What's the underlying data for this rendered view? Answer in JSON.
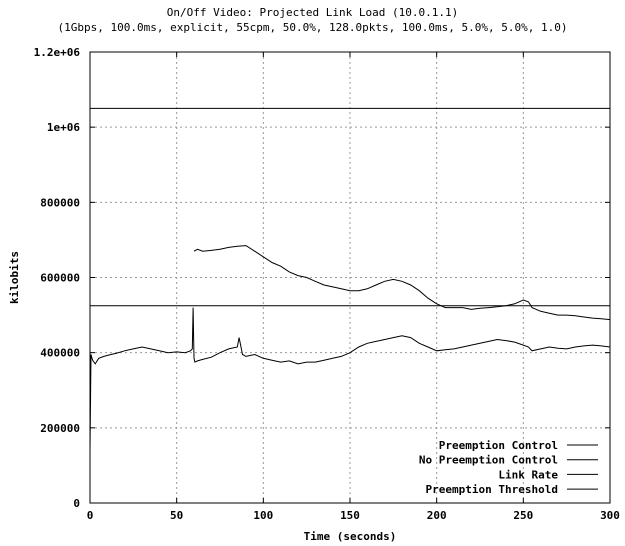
{
  "chart_data": {
    "type": "line",
    "title": "On/Off Video: Projected Link Load (10.0.1.1)",
    "subtitle": "(1Gbps, 100.0ms, explicit, 55cpm, 50.0%, 128.0pkts, 100.0ms, 5.0%, 5.0%, 1.0)",
    "xlabel": "Time (seconds)",
    "ylabel": "kilobits",
    "xlim": [
      0,
      300
    ],
    "ylim": [
      0,
      1200000
    ],
    "x_ticks": [
      0,
      50,
      100,
      150,
      200,
      250,
      300
    ],
    "x_tick_labels": [
      "0",
      "50",
      "100",
      "150",
      "200",
      "250",
      "300"
    ],
    "y_ticks": [
      0,
      200000,
      400000,
      600000,
      800000,
      1000000,
      1200000
    ],
    "y_tick_labels": [
      "0",
      "200000",
      "400000",
      "600000",
      "800000",
      "1e+06",
      "1.2e+06"
    ],
    "grid": true,
    "legend_position": "bottom-right",
    "series": [
      {
        "name": "Preemption Control",
        "color": "#000000",
        "x": [
          0,
          0.6,
          1.5,
          3,
          5,
          8,
          12,
          15,
          20,
          25,
          30,
          35,
          40,
          45,
          50,
          55,
          58,
          59,
          59.5,
          60,
          60.5,
          62,
          65,
          70,
          75,
          80,
          85,
          86,
          88,
          90,
          95,
          100,
          105,
          110,
          115,
          120,
          125,
          130,
          135,
          140,
          145,
          150,
          155,
          160,
          165,
          170,
          175,
          180,
          185,
          190,
          195,
          200,
          205,
          210,
          215,
          220,
          225,
          230,
          235,
          240,
          245,
          250,
          253,
          255,
          260,
          265,
          270,
          275,
          280,
          285,
          290,
          295,
          300
        ],
        "y": [
          140000,
          395000,
          380000,
          370000,
          385000,
          390000,
          395000,
          398000,
          405000,
          410000,
          415000,
          410000,
          405000,
          400000,
          402000,
          400000,
          405000,
          410000,
          520000,
          385000,
          375000,
          378000,
          382000,
          388000,
          400000,
          410000,
          415000,
          440000,
          395000,
          390000,
          395000,
          385000,
          380000,
          375000,
          378000,
          370000,
          375000,
          375000,
          380000,
          385000,
          390000,
          400000,
          415000,
          425000,
          430000,
          435000,
          440000,
          445000,
          440000,
          425000,
          415000,
          405000,
          408000,
          410000,
          415000,
          420000,
          425000,
          430000,
          435000,
          432000,
          428000,
          420000,
          415000,
          405000,
          410000,
          415000,
          412000,
          410000,
          415000,
          418000,
          420000,
          418000,
          415000
        ]
      },
      {
        "name": "No Preemption Control",
        "color": "#000000",
        "x": [
          60,
          62,
          65,
          70,
          75,
          80,
          85,
          90,
          95,
          100,
          105,
          110,
          115,
          120,
          125,
          130,
          135,
          140,
          145,
          150,
          155,
          160,
          165,
          170,
          175,
          180,
          185,
          190,
          195,
          200,
          205,
          210,
          215,
          220,
          225,
          230,
          235,
          240,
          245,
          250,
          253,
          255,
          260,
          265,
          270,
          275,
          280,
          285,
          290,
          295,
          300
        ],
        "y": [
          670000,
          675000,
          670000,
          672000,
          675000,
          680000,
          683000,
          685000,
          670000,
          655000,
          640000,
          630000,
          615000,
          605000,
          600000,
          590000,
          580000,
          575000,
          570000,
          565000,
          565000,
          570000,
          580000,
          590000,
          595000,
          590000,
          580000,
          565000,
          545000,
          530000,
          520000,
          520000,
          520000,
          515000,
          518000,
          520000,
          522000,
          525000,
          530000,
          540000,
          535000,
          520000,
          510000,
          505000,
          500000,
          500000,
          498000,
          495000,
          492000,
          490000,
          488000
        ]
      },
      {
        "name": "Link Rate",
        "color": "#000000",
        "x": [
          0,
          300
        ],
        "y": [
          1050000,
          1050000
        ]
      },
      {
        "name": "Preemption Threshold",
        "color": "#000000",
        "x": [
          0,
          300
        ],
        "y": [
          525000,
          525000
        ]
      }
    ]
  }
}
